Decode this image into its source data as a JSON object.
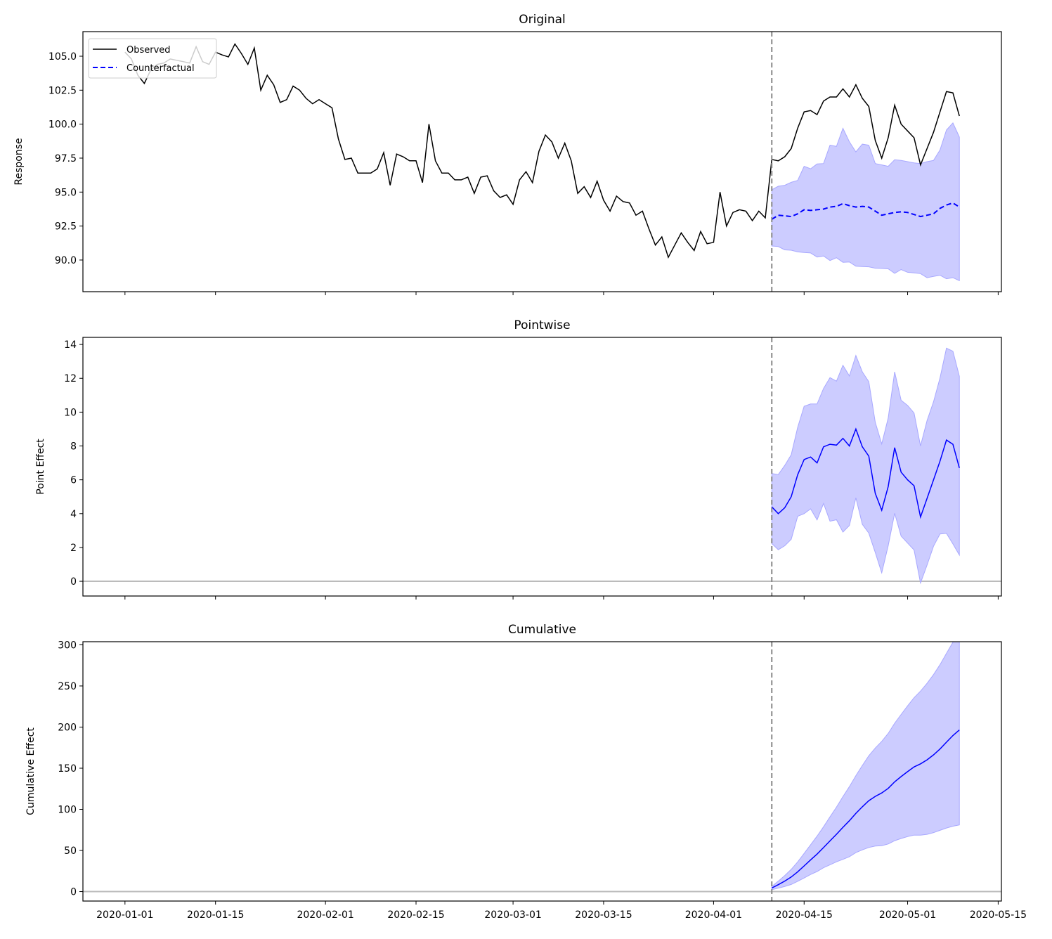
{
  "chart_data": {
    "type": "line",
    "xlim": [
      "2019-12-25T12:00",
      "2020-05-15T12:00"
    ],
    "x_ticks": [
      "2020-01-01",
      "2020-01-15",
      "2020-02-01",
      "2020-02-15",
      "2020-03-01",
      "2020-03-15",
      "2020-04-01",
      "2020-04-15",
      "2020-05-01",
      "2020-05-15"
    ],
    "intervention_date": "2020-04-10",
    "colors": {
      "observed": "#000000",
      "counterfactual": "#0000ff",
      "interval_fill": "#ccccff",
      "interval_edge": "#a8a8ff",
      "intervention_line": "#888888",
      "zero_line": "#bbbbbb"
    },
    "dates": [
      "2020-01-01",
      "2020-01-02",
      "2020-01-03",
      "2020-01-04",
      "2020-01-05",
      "2020-01-06",
      "2020-01-07",
      "2020-01-08",
      "2020-01-09",
      "2020-01-10",
      "2020-01-11",
      "2020-01-12",
      "2020-01-13",
      "2020-01-14",
      "2020-01-15",
      "2020-01-16",
      "2020-01-17",
      "2020-01-18",
      "2020-01-19",
      "2020-01-20",
      "2020-01-21",
      "2020-01-22",
      "2020-01-23",
      "2020-01-24",
      "2020-01-25",
      "2020-01-26",
      "2020-01-27",
      "2020-01-28",
      "2020-01-29",
      "2020-01-30",
      "2020-01-31",
      "2020-02-01",
      "2020-02-02",
      "2020-02-03",
      "2020-02-04",
      "2020-02-05",
      "2020-02-06",
      "2020-02-07",
      "2020-02-08",
      "2020-02-09",
      "2020-02-10",
      "2020-02-11",
      "2020-02-12",
      "2020-02-13",
      "2020-02-14",
      "2020-02-15",
      "2020-02-16",
      "2020-02-17",
      "2020-02-18",
      "2020-02-19",
      "2020-02-20",
      "2020-02-21",
      "2020-02-22",
      "2020-02-23",
      "2020-02-24",
      "2020-02-25",
      "2020-02-26",
      "2020-02-27",
      "2020-02-28",
      "2020-02-29",
      "2020-03-01",
      "2020-03-02",
      "2020-03-03",
      "2020-03-04",
      "2020-03-05",
      "2020-03-06",
      "2020-03-07",
      "2020-03-08",
      "2020-03-09",
      "2020-03-10",
      "2020-03-11",
      "2020-03-12",
      "2020-03-13",
      "2020-03-14",
      "2020-03-15",
      "2020-03-16",
      "2020-03-17",
      "2020-03-18",
      "2020-03-19",
      "2020-03-20",
      "2020-03-21",
      "2020-03-22",
      "2020-03-23",
      "2020-03-24",
      "2020-03-25",
      "2020-03-26",
      "2020-03-27",
      "2020-03-28",
      "2020-03-29",
      "2020-03-30",
      "2020-03-31",
      "2020-04-01",
      "2020-04-02",
      "2020-04-03",
      "2020-04-04",
      "2020-04-05",
      "2020-04-06",
      "2020-04-07",
      "2020-04-08",
      "2020-04-09",
      "2020-04-10",
      "2020-04-11",
      "2020-04-12",
      "2020-04-13",
      "2020-04-14",
      "2020-04-15",
      "2020-04-16",
      "2020-04-17",
      "2020-04-18",
      "2020-04-19",
      "2020-04-20",
      "2020-04-21",
      "2020-04-22",
      "2020-04-23",
      "2020-04-24",
      "2020-04-25",
      "2020-04-26",
      "2020-04-27",
      "2020-04-28",
      "2020-04-29",
      "2020-04-30",
      "2020-05-01",
      "2020-05-02",
      "2020-05-03",
      "2020-05-04",
      "2020-05-05",
      "2020-05-06",
      "2020-05-07",
      "2020-05-08",
      "2020-05-09"
    ],
    "observed": [
      105.3,
      104.8,
      103.6,
      103.0,
      104.0,
      104.4,
      104.5,
      104.8,
      104.7,
      104.6,
      104.5,
      105.7,
      104.6,
      104.4,
      105.3,
      105.1,
      104.95,
      105.9,
      105.2,
      104.4,
      105.6,
      102.5,
      103.6,
      102.9,
      101.6,
      101.8,
      102.8,
      102.5,
      101.9,
      101.5,
      101.8,
      101.5,
      101.2,
      98.9,
      97.4,
      97.5,
      96.4,
      96.4,
      96.4,
      96.7,
      97.9,
      95.5,
      97.8,
      97.6,
      97.3,
      97.3,
      95.7,
      100.0,
      97.3,
      96.4,
      96.4,
      95.9,
      95.9,
      96.1,
      94.9,
      96.1,
      96.2,
      95.1,
      94.6,
      94.8,
      94.1,
      95.9,
      96.5,
      95.7,
      98.0,
      99.2,
      98.7,
      97.5,
      98.6,
      97.3,
      94.9,
      95.4,
      94.6,
      95.8,
      94.4,
      93.6,
      94.7,
      94.3,
      94.2,
      93.3,
      93.6,
      92.3,
      91.1,
      91.7,
      90.2,
      91.1,
      92.0,
      91.3,
      90.7,
      92.1,
      91.2,
      91.3,
      95.0,
      92.5,
      93.5,
      93.7,
      93.6,
      92.9,
      93.6,
      93.1,
      97.4,
      97.3,
      97.6,
      98.2,
      99.7,
      100.9,
      101.0,
      100.7,
      101.7,
      102.0,
      102.0,
      102.6,
      102.0,
      102.9,
      101.9,
      101.3,
      98.8,
      97.5,
      99.0,
      101.4,
      100.0,
      99.5,
      99.0,
      97.0,
      98.2,
      99.4,
      100.9,
      102.4,
      102.3,
      100.6
    ],
    "post_period": {
      "counterfactual": [
        93.0,
        93.3,
        93.25,
        93.2,
        93.4,
        93.7,
        93.65,
        93.7,
        93.75,
        93.9,
        93.95,
        94.15,
        94.0,
        93.9,
        93.95,
        93.9,
        93.6,
        93.3,
        93.4,
        93.5,
        93.55,
        93.5,
        93.35,
        93.2,
        93.3,
        93.4,
        93.8,
        94.05,
        94.2,
        93.9
      ],
      "upper": [
        95.17,
        95.43,
        95.5,
        95.72,
        95.86,
        96.9,
        96.72,
        97.07,
        97.1,
        98.45,
        98.36,
        99.69,
        98.7,
        97.96,
        98.53,
        98.45,
        97.1,
        97.0,
        96.9,
        97.38,
        97.33,
        97.24,
        97.15,
        97.1,
        97.24,
        97.33,
        98.1,
        99.57,
        100.09,
        99.05
      ],
      "lower": [
        91.03,
        90.99,
        90.75,
        90.72,
        90.6,
        90.55,
        90.52,
        90.22,
        90.3,
        89.96,
        90.17,
        89.83,
        89.86,
        89.55,
        89.52,
        89.5,
        89.4,
        89.38,
        89.35,
        89.02,
        89.3,
        89.1,
        89.05,
        89.0,
        88.7,
        88.79,
        88.88,
        88.62,
        88.7,
        88.48
      ]
    },
    "panels": [
      {
        "title": "Original",
        "ylabel": "Response",
        "ylim": [
          87.67,
          106.81
        ],
        "yticks": [
          90.0,
          92.5,
          95.0,
          97.5,
          100.0,
          102.5,
          105.0
        ],
        "ytick_decimals": 1
      },
      {
        "title": "Pointwise",
        "ylabel": "Point Effect",
        "ylim": [
          -0.87,
          14.42
        ],
        "yticks": [
          0,
          2,
          4,
          6,
          8,
          10,
          12,
          14
        ],
        "ytick_decimals": 0
      },
      {
        "title": "Cumulative",
        "ylabel": "Cumulative Effect",
        "ylim": [
          -11.5,
          303.8
        ],
        "yticks": [
          0,
          50,
          100,
          150,
          200,
          250,
          300
        ],
        "ytick_decimals": 0
      }
    ],
    "legend": {
      "placement": "upper-left",
      "entries": [
        "Observed",
        "Counterfactual"
      ]
    },
    "grid": false
  }
}
